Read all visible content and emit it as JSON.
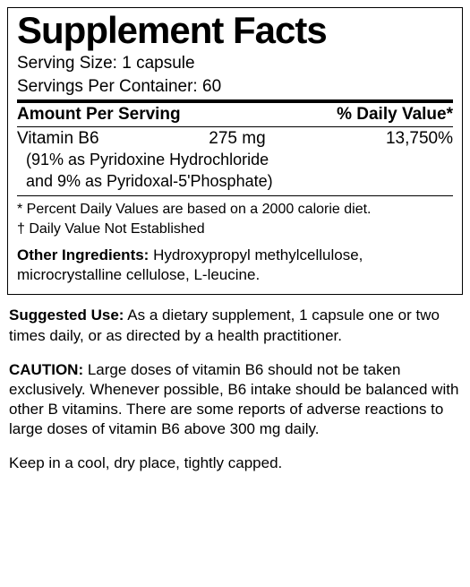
{
  "title": "Supplement Facts",
  "serving_size_label": "Serving Size:",
  "serving_size_value": "1 capsule",
  "servings_per_label": "Servings Per Container:",
  "servings_per_value": "60",
  "header_amount": "Amount Per Serving",
  "header_dv": "% Daily Value*",
  "ingredient": {
    "name": "Vitamin B6",
    "amount": "275 mg",
    "dv": "13,750%",
    "sub1": "(91% as Pyridoxine Hydrochloride",
    "sub2": "and 9% as Pyridoxal-5'Phosphate)"
  },
  "footnote1": "* Percent Daily Values are based on a 2000 calorie diet.",
  "footnote2": "† Daily Value Not Established",
  "other_label": "Other Ingredients:",
  "other_text": "  Hydroxypropyl methylcellulose, microcrystalline cellulose, L-leucine.",
  "suggested_label": "Suggested Use:",
  "suggested_text": "  As a dietary supplement, 1 capsule one or two times daily, or as directed by a health practitioner.",
  "caution_label": "CAUTION:",
  "caution_text": " Large doses of vitamin B6 should not be taken exclusively. Whenever possible, B6 intake should be balanced with other B vitamins. There are some reports of adverse reactions to large doses of vitamin B6 above 300 mg daily.",
  "storage": "Keep in a cool, dry place, tightly capped."
}
